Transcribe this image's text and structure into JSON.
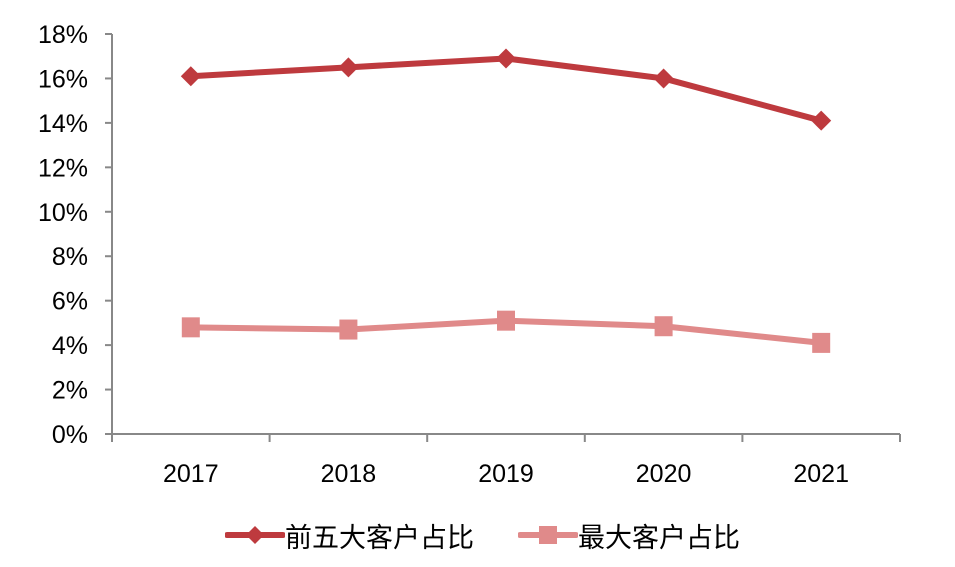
{
  "chart_data": {
    "type": "line",
    "title": "",
    "xlabel": "",
    "ylabel": "",
    "categories": [
      "2017",
      "2018",
      "2019",
      "2020",
      "2021"
    ],
    "series": [
      {
        "name": "前五大客户占比",
        "values": [
          16.1,
          16.5,
          16.9,
          16.0,
          14.1
        ],
        "color": "#BE3A3E",
        "marker": "diamond"
      },
      {
        "name": "最大客户占比",
        "values": [
          4.8,
          4.7,
          5.1,
          4.85,
          4.1
        ],
        "color": "#E08A8A",
        "marker": "square"
      }
    ],
    "ylim": [
      0,
      18
    ],
    "yticks": [
      "0%",
      "2%",
      "4%",
      "6%",
      "8%",
      "10%",
      "12%",
      "14%",
      "16%",
      "18%"
    ],
    "grid": false,
    "legend_position": "bottom"
  },
  "legend": {
    "items": [
      {
        "label": "前五大客户占比",
        "color": "#BE3A3E",
        "icon": "diamond-marker-icon"
      },
      {
        "label": "最大客户占比",
        "color": "#E08A8A",
        "icon": "square-marker-icon"
      }
    ]
  }
}
